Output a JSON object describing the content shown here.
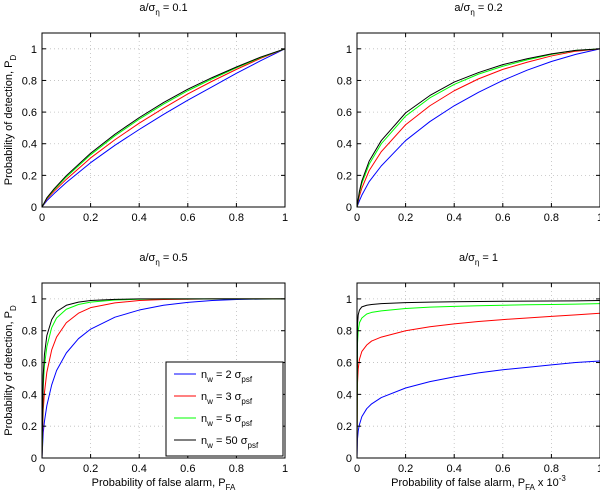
{
  "figure": {
    "colors": {
      "blue": "#0000ff",
      "red": "#ff0000",
      "green": "#00ff00",
      "black": "#000000",
      "grid": "#bdbdbd"
    }
  },
  "chart_data": [
    {
      "type": "line",
      "title": "a/σ_η = 0.1",
      "title_parts": {
        "base": "a/σ",
        "sub": "η",
        "rest": " = 0.1"
      },
      "xlabel": "",
      "ylabel": "Probability of detection, P_D",
      "ylabel_parts": {
        "base": "Probability of detection, P",
        "sub": "D"
      },
      "xlim": [
        0,
        1
      ],
      "ylim": [
        0,
        1.1
      ],
      "xticks": [
        0,
        0.2,
        0.4,
        0.6,
        0.8,
        1
      ],
      "yticks": [
        0,
        0.2,
        0.4,
        0.6,
        0.8,
        1
      ],
      "xtick_labels": [
        "0",
        "0.2",
        "0.4",
        "0.6",
        "0.8",
        "1"
      ],
      "ytick_labels": [
        "0",
        "0.2",
        "0.4",
        "0.6",
        "0.8",
        "1"
      ],
      "grid": true,
      "x": [
        0,
        0.02,
        0.05,
        0.1,
        0.2,
        0.3,
        0.4,
        0.5,
        0.6,
        0.7,
        0.8,
        0.9,
        1
      ],
      "series": [
        {
          "name": "n_w = 2 σ_psf",
          "color": "blue",
          "values": [
            0,
            0.04,
            0.085,
            0.155,
            0.28,
            0.39,
            0.49,
            0.585,
            0.675,
            0.76,
            0.845,
            0.925,
            1
          ]
        },
        {
          "name": "n_w = 3 σ_psf",
          "color": "red",
          "values": [
            0,
            0.05,
            0.1,
            0.175,
            0.31,
            0.425,
            0.53,
            0.625,
            0.715,
            0.795,
            0.87,
            0.94,
            1
          ]
        },
        {
          "name": "n_w = 5 σ_psf",
          "color": "green",
          "values": [
            0,
            0.055,
            0.11,
            0.19,
            0.33,
            0.45,
            0.555,
            0.65,
            0.735,
            0.81,
            0.88,
            0.945,
            1
          ]
        },
        {
          "name": "n_w = 50 σ_psf",
          "color": "black",
          "values": [
            0,
            0.058,
            0.115,
            0.198,
            0.34,
            0.46,
            0.565,
            0.66,
            0.745,
            0.818,
            0.885,
            0.948,
            1
          ]
        }
      ]
    },
    {
      "type": "line",
      "title": "a/σ_η = 0.2",
      "title_parts": {
        "base": "a/σ",
        "sub": "η",
        "rest": " = 0.2"
      },
      "xlabel": "",
      "ylabel": "",
      "xlim": [
        0,
        1
      ],
      "ylim": [
        0,
        1.1
      ],
      "xticks": [
        0,
        0.2,
        0.4,
        0.6,
        0.8,
        1
      ],
      "yticks": [
        0,
        0.2,
        0.4,
        0.6,
        0.8,
        1
      ],
      "xtick_labels": [
        "0",
        "0.2",
        "0.4",
        "0.6",
        "0.8",
        "1"
      ],
      "ytick_labels": [
        "0",
        "0.2",
        "0.4",
        "0.6",
        "0.8",
        "1"
      ],
      "grid": true,
      "x": [
        0,
        0.01,
        0.02,
        0.05,
        0.1,
        0.2,
        0.3,
        0.4,
        0.5,
        0.6,
        0.7,
        0.8,
        0.9,
        1
      ],
      "series": [
        {
          "name": "n_w = 2 σ_psf",
          "color": "blue",
          "values": [
            0,
            0.04,
            0.075,
            0.16,
            0.26,
            0.42,
            0.54,
            0.64,
            0.725,
            0.8,
            0.865,
            0.92,
            0.965,
            1
          ]
        },
        {
          "name": "n_w = 3 σ_psf",
          "color": "red",
          "values": [
            0,
            0.07,
            0.12,
            0.23,
            0.35,
            0.52,
            0.64,
            0.735,
            0.81,
            0.87,
            0.915,
            0.955,
            0.985,
            1
          ]
        },
        {
          "name": "n_w = 5 σ_psf",
          "color": "green",
          "values": [
            0,
            0.09,
            0.15,
            0.27,
            0.4,
            0.575,
            0.69,
            0.775,
            0.84,
            0.89,
            0.93,
            0.965,
            0.99,
            1
          ]
        },
        {
          "name": "n_w = 50 σ_psf",
          "color": "black",
          "values": [
            0,
            0.1,
            0.165,
            0.29,
            0.42,
            0.595,
            0.705,
            0.79,
            0.85,
            0.9,
            0.937,
            0.968,
            0.99,
            1
          ]
        }
      ]
    },
    {
      "type": "line",
      "title": "a/σ_η = 0.5",
      "title_parts": {
        "base": "a/σ",
        "sub": "η",
        "rest": " = 0.5"
      },
      "xlabel": "Probability of false alarm, P_FA",
      "xlabel_parts": {
        "base": "Probability of false alarm, P",
        "sub": "FA",
        "rest": ""
      },
      "ylabel": "Probability of detection, P_D",
      "ylabel_parts": {
        "base": "Probability of detection, P",
        "sub": "D"
      },
      "xlim": [
        0,
        1
      ],
      "ylim": [
        0,
        1.1
      ],
      "xticks": [
        0,
        0.2,
        0.4,
        0.6,
        0.8,
        1
      ],
      "yticks": [
        0,
        0.2,
        0.4,
        0.6,
        0.8,
        1
      ],
      "xtick_labels": [
        "0",
        "0.2",
        "0.4",
        "0.6",
        "0.8",
        "1"
      ],
      "ytick_labels": [
        "0",
        "0.2",
        "0.4",
        "0.6",
        "0.8",
        "1"
      ],
      "grid": true,
      "legend": {
        "placement": "bottom-right",
        "entries": [
          {
            "text": "n_w = 2 σ_psf",
            "parts": {
              "n": "n",
              "nsub": "w",
              "mid": " = 2 σ",
              "ssub": "psf"
            },
            "color": "blue"
          },
          {
            "text": "n_w = 3 σ_psf",
            "parts": {
              "n": "n",
              "nsub": "w",
              "mid": " = 3 σ",
              "ssub": "psf"
            },
            "color": "red"
          },
          {
            "text": "n_w = 5 σ_psf",
            "parts": {
              "n": "n",
              "nsub": "w",
              "mid": " = 5 σ",
              "ssub": "psf"
            },
            "color": "green"
          },
          {
            "text": "n_w = 50 σ_psf",
            "parts": {
              "n": "n",
              "nsub": "w",
              "mid": " = 50 σ",
              "ssub": "psf"
            },
            "color": "black"
          }
        ]
      },
      "x": [
        0,
        0.005,
        0.01,
        0.02,
        0.04,
        0.06,
        0.1,
        0.15,
        0.2,
        0.3,
        0.4,
        0.5,
        0.6,
        0.7,
        0.8,
        0.9,
        1
      ],
      "series": [
        {
          "name": "n_w = 2 σ_psf",
          "color": "blue",
          "values": [
            0,
            0.16,
            0.23,
            0.33,
            0.46,
            0.55,
            0.66,
            0.75,
            0.81,
            0.885,
            0.93,
            0.96,
            0.978,
            0.99,
            0.996,
            0.999,
            1
          ]
        },
        {
          "name": "n_w = 3 σ_psf",
          "color": "red",
          "values": [
            0,
            0.3,
            0.41,
            0.54,
            0.68,
            0.76,
            0.85,
            0.91,
            0.945,
            0.975,
            0.99,
            0.996,
            0.998,
            1,
            1,
            1,
            1
          ]
        },
        {
          "name": "n_w = 5 σ_psf",
          "color": "green",
          "values": [
            0,
            0.45,
            0.58,
            0.7,
            0.82,
            0.88,
            0.935,
            0.965,
            0.98,
            0.993,
            0.998,
            1,
            1,
            1,
            1,
            1,
            1
          ]
        },
        {
          "name": "n_w = 50 σ_psf",
          "color": "black",
          "values": [
            0,
            0.52,
            0.65,
            0.77,
            0.87,
            0.92,
            0.96,
            0.98,
            0.99,
            0.997,
            1,
            1,
            1,
            1,
            1,
            1,
            1
          ]
        }
      ]
    },
    {
      "type": "line",
      "title": "a/σ_η = 1",
      "title_parts": {
        "base": "a/σ",
        "sub": "η",
        "rest": " = 1"
      },
      "xlabel": "Probability of false alarm, P_FA x 10^-3",
      "xlabel_parts": {
        "base": "Probability of false alarm, P",
        "sub": "FA",
        "rest": " x 10",
        "sup": "-3"
      },
      "ylabel": "",
      "xlim": [
        0,
        1
      ],
      "ylim": [
        0,
        1.1
      ],
      "xticks": [
        0,
        0.2,
        0.4,
        0.6,
        0.8,
        1
      ],
      "yticks": [
        0,
        0.2,
        0.4,
        0.6,
        0.8,
        1
      ],
      "xtick_labels": [
        "0",
        "0.2",
        "0.4",
        "0.6",
        "0.8",
        "1"
      ],
      "ytick_labels": [
        "0",
        "0.2",
        "0.4",
        "0.6",
        "0.8",
        "1"
      ],
      "grid": true,
      "x": [
        0,
        0.002,
        0.005,
        0.01,
        0.02,
        0.04,
        0.06,
        0.1,
        0.2,
        0.3,
        0.4,
        0.5,
        0.6,
        0.7,
        0.8,
        0.9,
        1
      ],
      "series": [
        {
          "name": "n_w = 2 σ_psf",
          "color": "blue",
          "values": [
            0,
            0.12,
            0.17,
            0.21,
            0.26,
            0.31,
            0.34,
            0.38,
            0.44,
            0.48,
            0.51,
            0.535,
            0.555,
            0.57,
            0.585,
            0.6,
            0.61
          ]
        },
        {
          "name": "n_w = 3 σ_psf",
          "color": "red",
          "values": [
            0,
            0.47,
            0.56,
            0.62,
            0.67,
            0.71,
            0.735,
            0.76,
            0.8,
            0.825,
            0.843,
            0.858,
            0.87,
            0.88,
            0.89,
            0.9,
            0.91
          ]
        },
        {
          "name": "n_w = 5 σ_psf",
          "color": "green",
          "values": [
            0,
            0.72,
            0.8,
            0.85,
            0.88,
            0.905,
            0.915,
            0.925,
            0.94,
            0.948,
            0.953,
            0.957,
            0.96,
            0.963,
            0.965,
            0.967,
            0.97
          ]
        },
        {
          "name": "n_w = 50 σ_psf",
          "color": "black",
          "values": [
            0,
            0.84,
            0.9,
            0.93,
            0.95,
            0.96,
            0.965,
            0.97,
            0.977,
            0.98,
            0.982,
            0.984,
            0.985,
            0.986,
            0.987,
            0.988,
            0.99
          ]
        }
      ]
    }
  ]
}
